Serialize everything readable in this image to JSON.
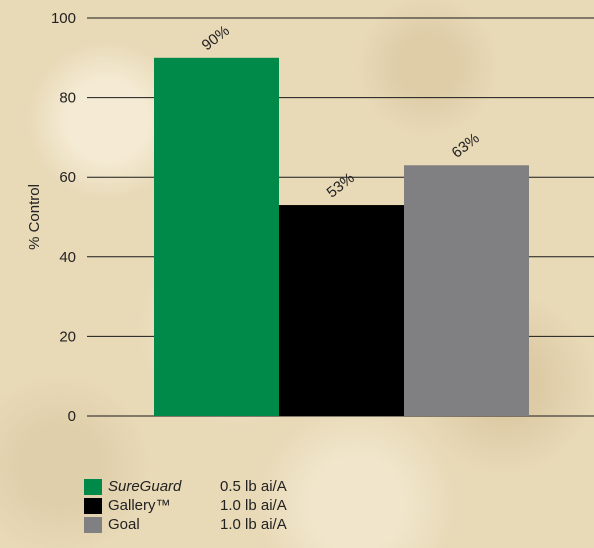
{
  "chart_data": {
    "type": "bar",
    "ylabel": "% Control",
    "ylim": [
      0,
      100
    ],
    "yticks": [
      0,
      20,
      40,
      60,
      80,
      100
    ],
    "grid": true,
    "series": [
      {
        "name": "SureGuard",
        "rate": "0.5 lb ai/A",
        "value": 90,
        "label": "90%",
        "color": "#008a4a"
      },
      {
        "name": "Gallery™",
        "rate": "1.0 lb ai/A",
        "value": 53,
        "label": "53%",
        "color": "#000000"
      },
      {
        "name": "Goal",
        "rate": "1.0 lb ai/A",
        "value": 63,
        "label": "63%",
        "color": "#808083"
      }
    ],
    "legend_position": "bottom-left"
  }
}
